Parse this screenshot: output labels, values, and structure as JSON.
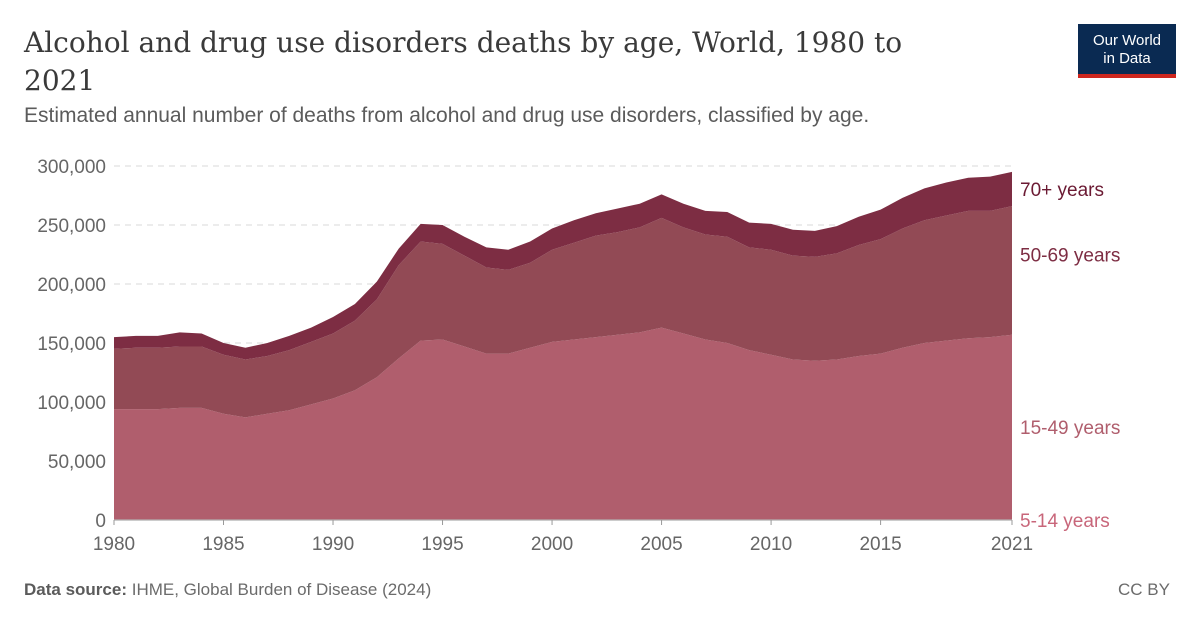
{
  "header": {
    "title": "Alcohol and drug use disorders deaths by age, World, 1980 to 2021",
    "subtitle": "Estimated annual number of deaths from alcohol and drug use disorders, classified by age."
  },
  "logo": {
    "line1": "Our World",
    "line2": "in Data",
    "bg_color": "#0a2a52",
    "accent_color": "#ce261e"
  },
  "footer": {
    "source_label": "Data source:",
    "source_text": "IHME, Global Burden of Disease (2024)",
    "license": "CC BY"
  },
  "chart_data": {
    "type": "area",
    "stacked": true,
    "grid": "horizontal dashed",
    "legend_placement": "right, inline labels",
    "x": [
      1980,
      1981,
      1982,
      1983,
      1984,
      1985,
      1986,
      1987,
      1988,
      1989,
      1990,
      1991,
      1992,
      1993,
      1994,
      1995,
      1996,
      1997,
      1998,
      1999,
      2000,
      2001,
      2002,
      2003,
      2004,
      2005,
      2006,
      2007,
      2008,
      2009,
      2010,
      2011,
      2012,
      2013,
      2014,
      2015,
      2016,
      2017,
      2018,
      2019,
      2020,
      2021
    ],
    "xlim": [
      1980,
      2021
    ],
    "ylim": [
      0,
      300000
    ],
    "x_ticks": [
      "1980",
      "1985",
      "1990",
      "1995",
      "2000",
      "2005",
      "2010",
      "2015",
      "2021"
    ],
    "y_ticks": [
      "0",
      "50,000",
      "100,000",
      "150,000",
      "200,000",
      "250,000",
      "300,000"
    ],
    "series": [
      {
        "name": "5-14 years",
        "color": "#c8667a",
        "values": [
          600,
          600,
          600,
          600,
          600,
          600,
          600,
          600,
          600,
          600,
          600,
          600,
          600,
          600,
          600,
          600,
          600,
          600,
          600,
          600,
          600,
          600,
          600,
          600,
          600,
          600,
          600,
          600,
          600,
          600,
          600,
          600,
          600,
          600,
          600,
          600,
          600,
          600,
          600,
          600,
          600,
          600
        ]
      },
      {
        "name": "15-49 years",
        "color": "#b05e6d",
        "values": [
          93400,
          93400,
          93400,
          94400,
          94400,
          89400,
          86400,
          89400,
          92400,
          97400,
          102400,
          109400,
          120400,
          136400,
          151400,
          152400,
          146400,
          140400,
          140400,
          145400,
          150400,
          152400,
          154400,
          156400,
          158400,
          162400,
          157400,
          152400,
          149400,
          143400,
          139400,
          135400,
          134400,
          135400,
          138400,
          140400,
          145400,
          149400,
          151400,
          153400,
          154400,
          156400
        ]
      },
      {
        "name": "50-69 years",
        "color": "#924a55",
        "values": [
          51000,
          52000,
          52000,
          52000,
          52000,
          50000,
          49000,
          49000,
          51000,
          53000,
          55000,
          59000,
          66000,
          79000,
          84000,
          81000,
          77000,
          73000,
          71000,
          72000,
          78000,
          82000,
          86000,
          87000,
          89000,
          93000,
          90000,
          89000,
          90000,
          87000,
          89000,
          88000,
          88000,
          90000,
          94000,
          97000,
          101000,
          104000,
          106000,
          108000,
          107000,
          109000
        ]
      },
      {
        "name": "70+ years",
        "color": "#7d2d43",
        "values": [
          10000,
          10000,
          10000,
          12000,
          11000,
          10000,
          10000,
          11000,
          12000,
          12000,
          14000,
          14000,
          15000,
          14000,
          15000,
          16000,
          16000,
          17000,
          17000,
          18000,
          18000,
          19000,
          19000,
          20000,
          20000,
          20000,
          20000,
          20000,
          21000,
          21000,
          22000,
          22000,
          22000,
          23000,
          24000,
          25000,
          26000,
          27000,
          28000,
          28000,
          29000,
          29000
        ]
      }
    ]
  }
}
